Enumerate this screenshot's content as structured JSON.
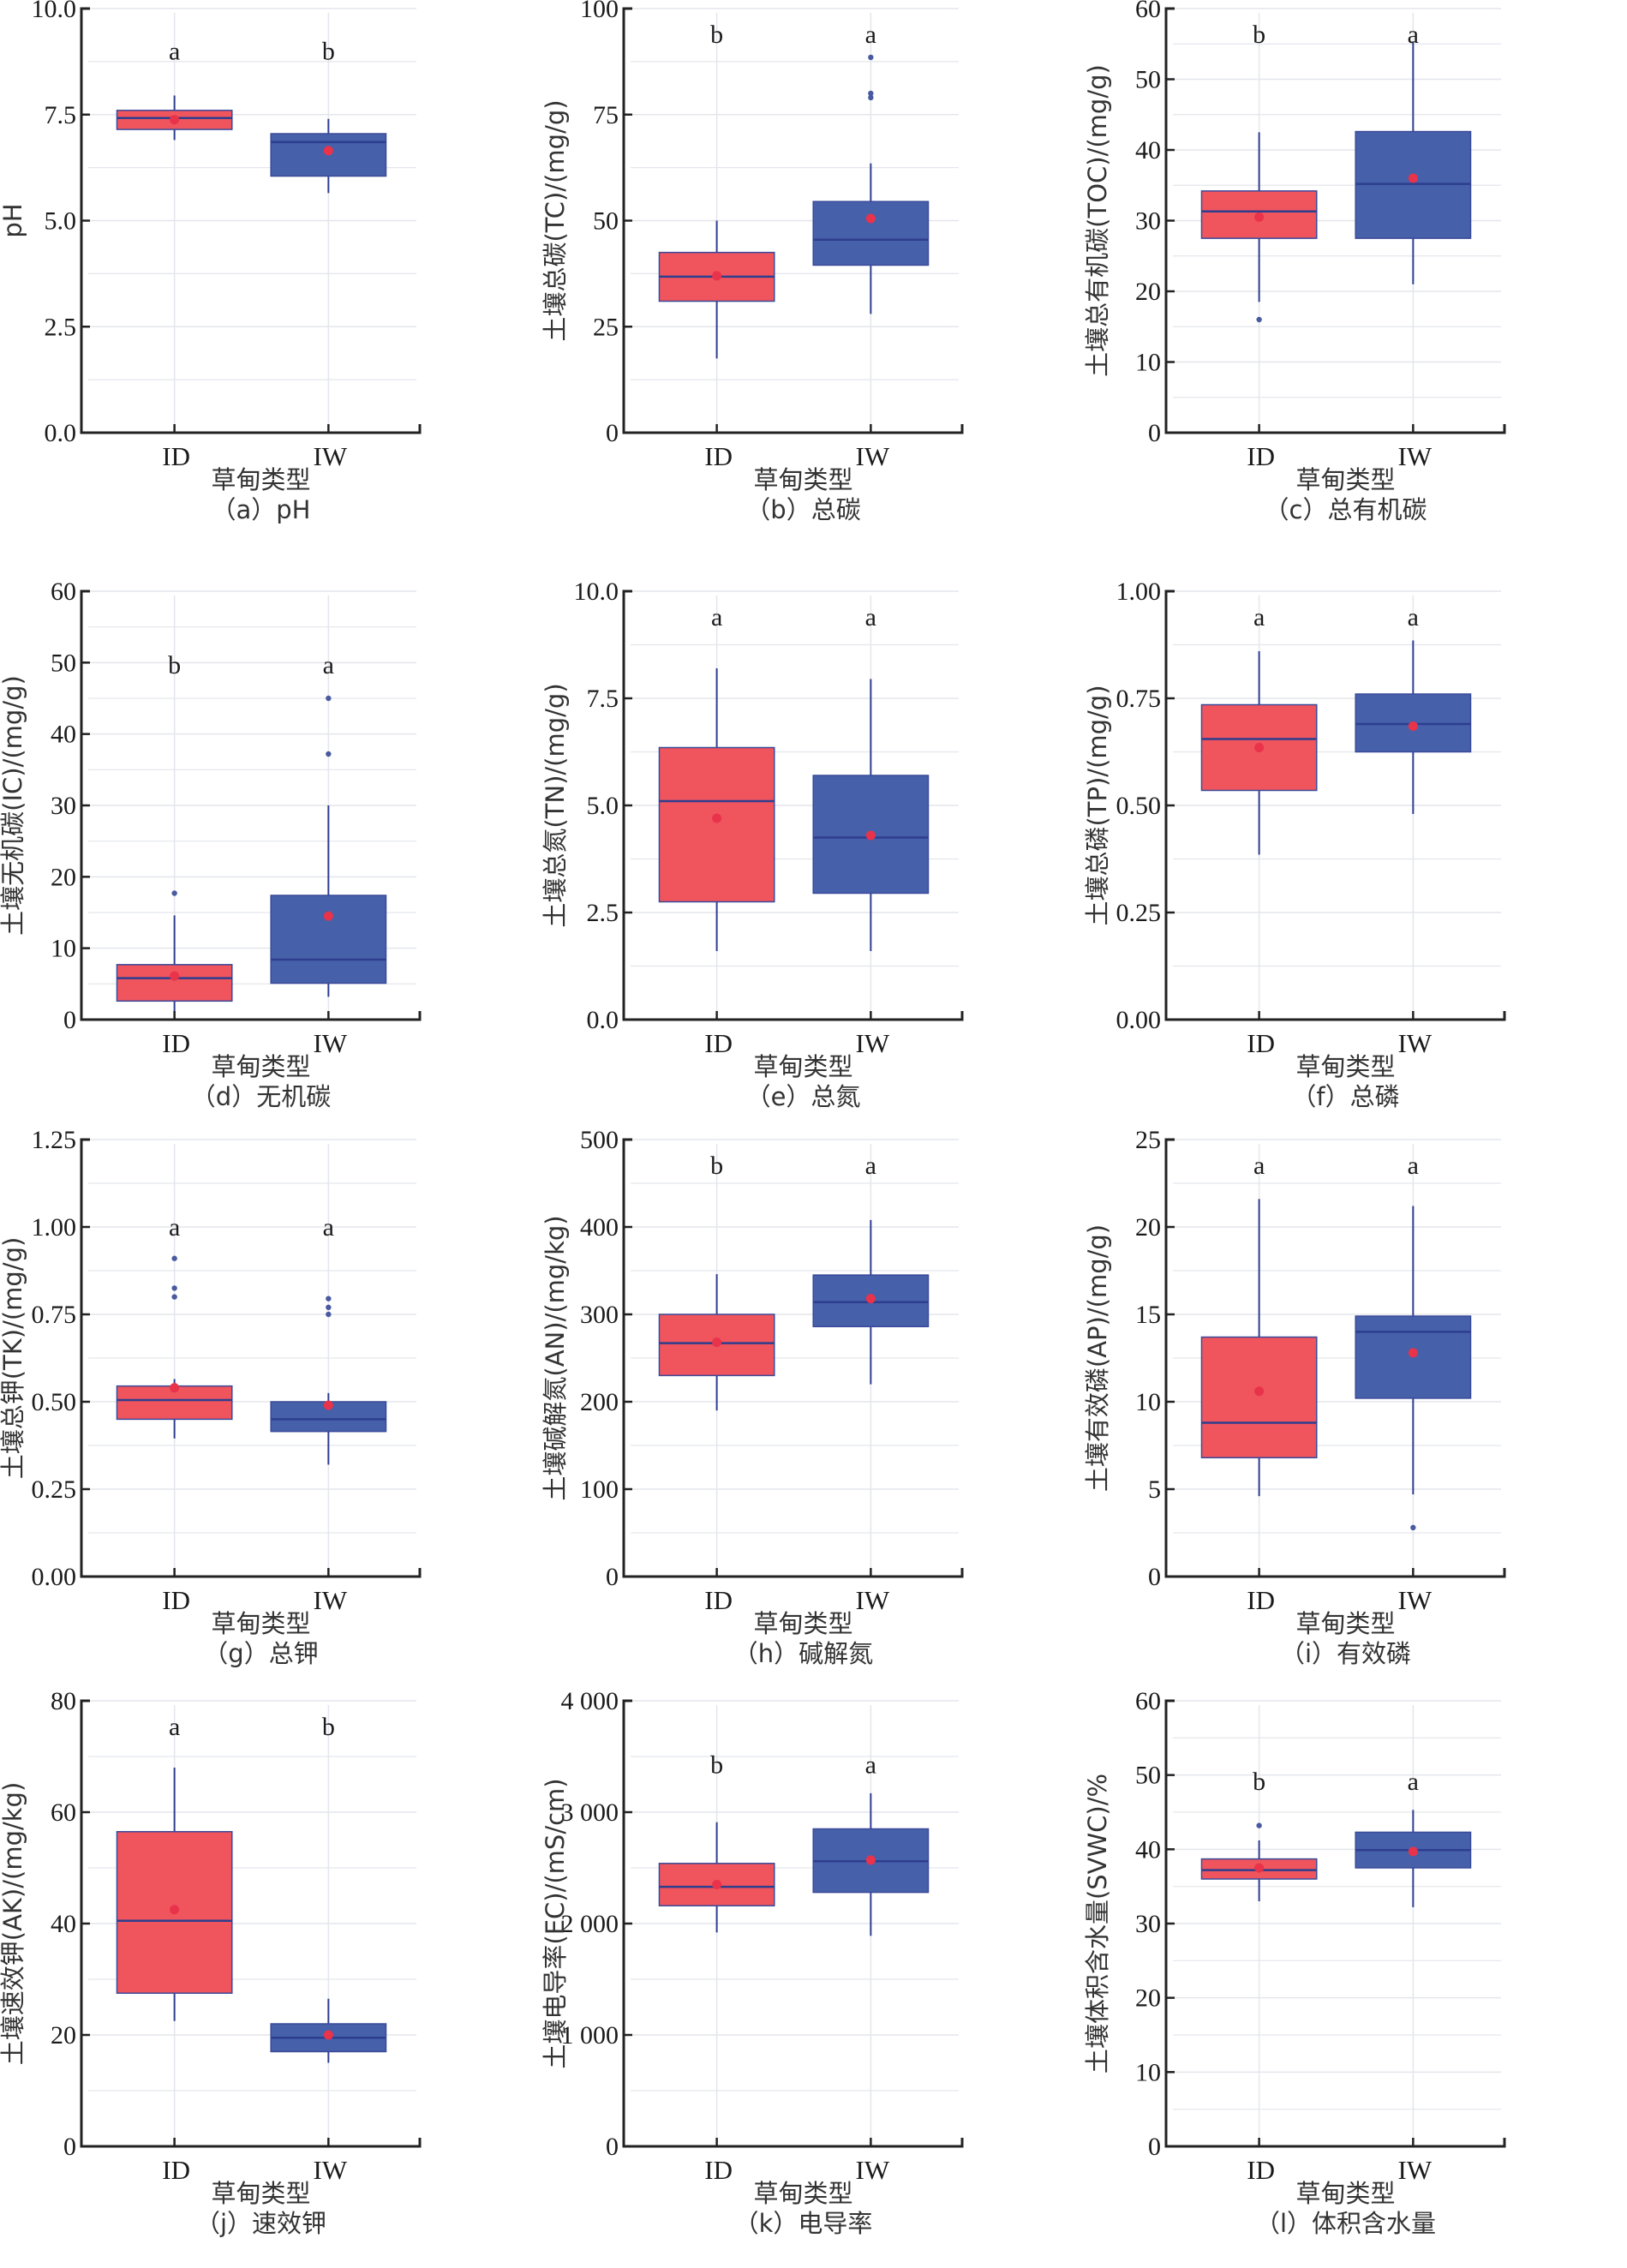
{
  "colors": {
    "ID_fill": "#F0545D",
    "IW_fill": "#4660AA",
    "edge": "#3A4A9A",
    "median": "#2E3E8F",
    "mean": "#E8334A",
    "outlier": "#4A5AA0",
    "axis": "#222222",
    "grid": "#E4E6EC"
  },
  "chart_data": [
    {
      "id": "a",
      "type": "box",
      "caption": "（a）pH",
      "ylabel": "pH",
      "xlabel": "草甸类型",
      "ylim": [
        0,
        10
      ],
      "yticks": [
        0,
        2.5,
        5,
        7.5,
        10
      ],
      "ytick_labels": [
        "0.0",
        "2.5",
        "5.0",
        "7.5",
        "10.0"
      ],
      "categories": [
        "ID",
        "IW"
      ],
      "groups": [
        {
          "name": "ID",
          "whisker_low": 6.9,
          "q1": 7.15,
          "median": 7.42,
          "q3": 7.6,
          "whisker_high": 7.95,
          "mean": 7.38,
          "outliers": [],
          "sig": "a"
        },
        {
          "name": "IW",
          "whisker_low": 5.65,
          "q1": 6.05,
          "median": 6.85,
          "q3": 7.05,
          "whisker_high": 7.4,
          "mean": 6.65,
          "outliers": [],
          "sig": "b"
        }
      ]
    },
    {
      "id": "b",
      "type": "box",
      "caption": "（b）总碳",
      "ylabel": "土壤总碳(TC)/(mg/g)",
      "xlabel": "草甸类型",
      "ylim": [
        0,
        100
      ],
      "yticks": [
        0,
        25,
        50,
        75,
        100
      ],
      "ytick_labels": [
        "0",
        "25",
        "50",
        "75",
        "100"
      ],
      "categories": [
        "ID",
        "IW"
      ],
      "groups": [
        {
          "name": "ID",
          "whisker_low": 17.5,
          "q1": 31,
          "median": 36.8,
          "q3": 42.5,
          "whisker_high": 50,
          "mean": 37,
          "outliers": [],
          "sig": "b"
        },
        {
          "name": "IW",
          "whisker_low": 28,
          "q1": 39.5,
          "median": 45.5,
          "q3": 54.5,
          "whisker_high": 63.5,
          "mean": 50.5,
          "outliers": [
            79,
            80,
            88.5
          ],
          "sig": "a"
        }
      ]
    },
    {
      "id": "c",
      "type": "box",
      "caption": "（c）总有机碳",
      "ylabel": "土壤总有机碳(TOC)/(mg/g)",
      "xlabel": "草甸类型",
      "ylim": [
        0,
        60
      ],
      "yticks": [
        0,
        10,
        20,
        30,
        40,
        50,
        60
      ],
      "ytick_labels": [
        "0",
        "10",
        "20",
        "30",
        "40",
        "50",
        "60"
      ],
      "categories": [
        "ID",
        "IW"
      ],
      "groups": [
        {
          "name": "ID",
          "whisker_low": 18.5,
          "q1": 27.5,
          "median": 31.3,
          "q3": 34.2,
          "whisker_high": 42.5,
          "mean": 30.5,
          "outliers": [
            16
          ],
          "sig": "b"
        },
        {
          "name": "IW",
          "whisker_low": 21,
          "q1": 27.5,
          "median": 35.2,
          "q3": 42.6,
          "whisker_high": 55.2,
          "mean": 36,
          "outliers": [],
          "sig": "a"
        }
      ]
    },
    {
      "id": "d",
      "type": "box",
      "caption": "（d）无机碳",
      "ylabel": "土壤无机碳(IC)/(mg/g)",
      "xlabel": "草甸类型",
      "ylim": [
        0,
        60
      ],
      "yticks": [
        0,
        10,
        20,
        30,
        40,
        50,
        60
      ],
      "ytick_labels": [
        "0",
        "10",
        "20",
        "30",
        "40",
        "50",
        "60"
      ],
      "categories": [
        "ID",
        "IW"
      ],
      "groups": [
        {
          "name": "ID",
          "whisker_low": 0,
          "q1": 2.6,
          "median": 5.8,
          "q3": 7.7,
          "whisker_high": 14.6,
          "mean": 6.1,
          "outliers": [
            17.7
          ],
          "sig": "b"
        },
        {
          "name": "IW",
          "whisker_low": 3.2,
          "q1": 5.1,
          "median": 8.4,
          "q3": 17.4,
          "whisker_high": 30,
          "mean": 14.5,
          "outliers": [
            37.2,
            45
          ],
          "sig": "a"
        }
      ]
    },
    {
      "id": "e",
      "type": "box",
      "caption": "（e）总氮",
      "ylabel": "土壤总氮(TN)/(mg/g)",
      "xlabel": "草甸类型",
      "ylim": [
        0,
        10
      ],
      "yticks": [
        0,
        2.5,
        5,
        7.5,
        10
      ],
      "ytick_labels": [
        "0.0",
        "2.5",
        "5.0",
        "7.5",
        "10.0"
      ],
      "categories": [
        "ID",
        "IW"
      ],
      "groups": [
        {
          "name": "ID",
          "whisker_low": 1.6,
          "q1": 2.75,
          "median": 5.1,
          "q3": 6.35,
          "whisker_high": 8.2,
          "mean": 4.7,
          "outliers": [],
          "sig": "a"
        },
        {
          "name": "IW",
          "whisker_low": 1.6,
          "q1": 2.95,
          "median": 4.25,
          "q3": 5.7,
          "whisker_high": 7.95,
          "mean": 4.3,
          "outliers": [],
          "sig": "a"
        }
      ]
    },
    {
      "id": "f",
      "type": "box",
      "caption": "（f）总磷",
      "ylabel": "土壤总磷(TP)/(mg/g)",
      "xlabel": "草甸类型",
      "ylim": [
        0,
        1
      ],
      "yticks": [
        0,
        0.25,
        0.5,
        0.75,
        1
      ],
      "ytick_labels": [
        "0.00",
        "0.25",
        "0.50",
        "0.75",
        "1.00"
      ],
      "categories": [
        "ID",
        "IW"
      ],
      "groups": [
        {
          "name": "ID",
          "whisker_low": 0.385,
          "q1": 0.535,
          "median": 0.655,
          "q3": 0.735,
          "whisker_high": 0.86,
          "mean": 0.635,
          "outliers": [],
          "sig": "a"
        },
        {
          "name": "IW",
          "whisker_low": 0.48,
          "q1": 0.625,
          "median": 0.69,
          "q3": 0.76,
          "whisker_high": 0.885,
          "mean": 0.685,
          "outliers": [],
          "sig": "a"
        }
      ]
    },
    {
      "id": "g",
      "type": "box",
      "caption": "（g）总钾",
      "ylabel": "土壤总钾(TK)/(mg/g)",
      "xlabel": "草甸类型",
      "ylim": [
        0,
        1.25
      ],
      "yticks": [
        0,
        0.25,
        0.5,
        0.75,
        1,
        1.25
      ],
      "ytick_labels": [
        "0.00",
        "0.25",
        "0.50",
        "0.75",
        "1.00",
        "1.25"
      ],
      "categories": [
        "ID",
        "IW"
      ],
      "groups": [
        {
          "name": "ID",
          "whisker_low": 0.395,
          "q1": 0.45,
          "median": 0.505,
          "q3": 0.545,
          "whisker_high": 0.565,
          "mean": 0.54,
          "outliers": [
            0.8,
            0.825,
            0.91
          ],
          "sig": "a"
        },
        {
          "name": "IW",
          "whisker_low": 0.32,
          "q1": 0.415,
          "median": 0.45,
          "q3": 0.5,
          "whisker_high": 0.525,
          "mean": 0.49,
          "outliers": [
            0.75,
            0.77,
            0.795
          ],
          "sig": "a"
        }
      ]
    },
    {
      "id": "h",
      "type": "box",
      "caption": "（h）碱解氮",
      "ylabel": "土壤碱解氮(AN)/(mg/kg)",
      "xlabel": "草甸类型",
      "ylim": [
        0,
        500
      ],
      "yticks": [
        0,
        100,
        200,
        300,
        400,
        500
      ],
      "ytick_labels": [
        "0",
        "100",
        "200",
        "300",
        "400",
        "500"
      ],
      "categories": [
        "ID",
        "IW"
      ],
      "groups": [
        {
          "name": "ID",
          "whisker_low": 190,
          "q1": 230,
          "median": 267,
          "q3": 300,
          "whisker_high": 346,
          "mean": 268,
          "outliers": [],
          "sig": "b"
        },
        {
          "name": "IW",
          "whisker_low": 220,
          "q1": 286,
          "median": 314,
          "q3": 345,
          "whisker_high": 408,
          "mean": 318,
          "outliers": [],
          "sig": "a"
        }
      ]
    },
    {
      "id": "i",
      "type": "box",
      "caption": "（i）有效磷",
      "ylabel": "土壤有效磷(AP)/(mg/g)",
      "xlabel": "草甸类型",
      "ylim": [
        0,
        25
      ],
      "yticks": [
        0,
        5,
        10,
        15,
        20,
        25
      ],
      "ytick_labels": [
        "0",
        "5",
        "10",
        "15",
        "20",
        "25"
      ],
      "categories": [
        "ID",
        "IW"
      ],
      "groups": [
        {
          "name": "ID",
          "whisker_low": 4.6,
          "q1": 6.8,
          "median": 8.8,
          "q3": 13.7,
          "whisker_high": 21.6,
          "mean": 10.6,
          "outliers": [],
          "sig": "a"
        },
        {
          "name": "IW",
          "whisker_low": 4.7,
          "q1": 10.2,
          "median": 14,
          "q3": 14.9,
          "whisker_high": 21.2,
          "mean": 12.8,
          "outliers": [
            2.8
          ],
          "sig": "a"
        }
      ]
    },
    {
      "id": "j",
      "type": "box",
      "caption": "（j）速效钾",
      "ylabel": "土壤速效钾(AK)/(mg/kg)",
      "xlabel": "草甸类型",
      "ylim": [
        0,
        80
      ],
      "yticks": [
        0,
        20,
        40,
        60,
        80
      ],
      "ytick_labels": [
        "0",
        "20",
        "40",
        "60",
        "80"
      ],
      "categories": [
        "ID",
        "IW"
      ],
      "groups": [
        {
          "name": "ID",
          "whisker_low": 22.5,
          "q1": 27.5,
          "median": 40.5,
          "q3": 56.5,
          "whisker_high": 68,
          "mean": 42.5,
          "outliers": [],
          "sig": "a"
        },
        {
          "name": "IW",
          "whisker_low": 15,
          "q1": 17,
          "median": 19.5,
          "q3": 22,
          "whisker_high": 26.5,
          "mean": 20,
          "outliers": [],
          "sig": "b"
        }
      ]
    },
    {
      "id": "k",
      "type": "box",
      "caption": "（k）电导率",
      "ylabel": "土壤电导率(EC)/(mS/cm)",
      "xlabel": "草甸类型",
      "ylim": [
        0,
        4000
      ],
      "yticks": [
        0,
        1000,
        2000,
        3000,
        4000
      ],
      "ytick_labels": [
        "0",
        "1 000",
        "2 000",
        "3 000",
        "4 000"
      ],
      "categories": [
        "ID",
        "IW"
      ],
      "groups": [
        {
          "name": "ID",
          "whisker_low": 1920,
          "q1": 2160,
          "median": 2330,
          "q3": 2540,
          "whisker_high": 2910,
          "mean": 2350,
          "outliers": [],
          "sig": "b"
        },
        {
          "name": "IW",
          "whisker_low": 1890,
          "q1": 2280,
          "median": 2560,
          "q3": 2850,
          "whisker_high": 3170,
          "mean": 2570,
          "outliers": [],
          "sig": "a"
        }
      ]
    },
    {
      "id": "l",
      "type": "box",
      "caption": "（l）体积含水量",
      "ylabel": "土壤体积含水量(SVWC)/%",
      "xlabel": "草甸类型",
      "ylim": [
        0,
        60
      ],
      "yticks": [
        0,
        10,
        20,
        30,
        40,
        50,
        60
      ],
      "ytick_labels": [
        "0",
        "10",
        "20",
        "30",
        "40",
        "50",
        "60"
      ],
      "categories": [
        "ID",
        "IW"
      ],
      "groups": [
        {
          "name": "ID",
          "whisker_low": 33,
          "q1": 36,
          "median": 37.2,
          "q3": 38.7,
          "whisker_high": 41.2,
          "mean": 37.5,
          "outliers": [
            43.2
          ],
          "sig": "b"
        },
        {
          "name": "IW",
          "whisker_low": 32.2,
          "q1": 37.5,
          "median": 39.9,
          "q3": 42.3,
          "whisker_high": 45.3,
          "mean": 39.7,
          "outliers": [],
          "sig": "a"
        }
      ]
    }
  ]
}
